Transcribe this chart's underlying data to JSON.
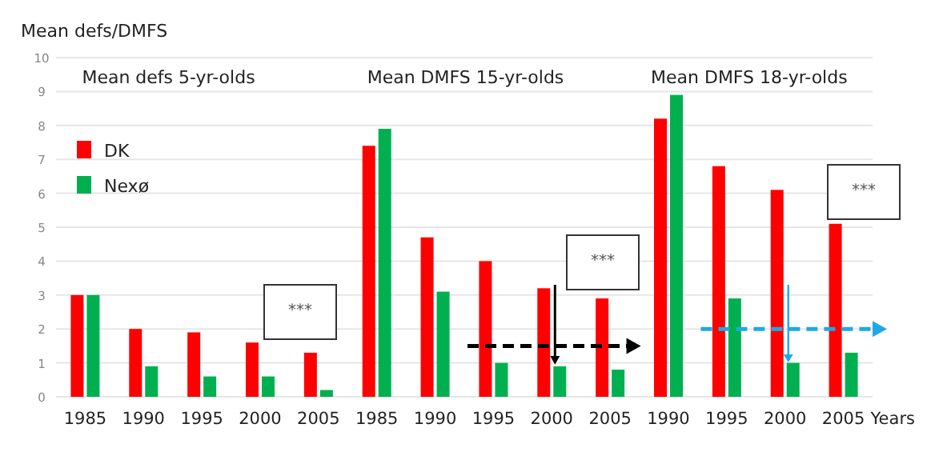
{
  "chart_data": {
    "type": "bar",
    "ylabel": "Mean defs/DMFS",
    "xlabel": "Years",
    "categories": [
      "1985",
      "1990",
      "1995",
      "2000",
      "2005",
      "1985",
      "1990",
      "1995",
      "2000",
      "2005",
      "1990",
      "1995",
      "2000",
      "2005"
    ],
    "series": [
      {
        "name": "DK",
        "color": "#ff0000",
        "values": [
          3,
          2,
          1.9,
          1.6,
          1.3,
          7.4,
          4.7,
          4.0,
          3.2,
          2.9,
          8.2,
          6.8,
          6.1,
          5.1
        ]
      },
      {
        "name": "Nexø",
        "color": "#00b050",
        "values": [
          3,
          0.9,
          0.6,
          0.6,
          0.2,
          7.9,
          3.1,
          1.0,
          0.9,
          0.8,
          8.9,
          2.9,
          1.0,
          1.3
        ]
      }
    ],
    "ylim": [
      0,
      10
    ],
    "yticks": [
      0,
      1,
      2,
      3,
      4,
      5,
      6,
      7,
      8,
      9,
      10
    ],
    "grid": "y",
    "legend": "top left",
    "annotations": [
      "Mean defs 5-yr-olds",
      "Mean DMFS 15-yr-olds",
      "Mean DMFS 18-yr-olds",
      "***",
      "***",
      "***"
    ]
  }
}
